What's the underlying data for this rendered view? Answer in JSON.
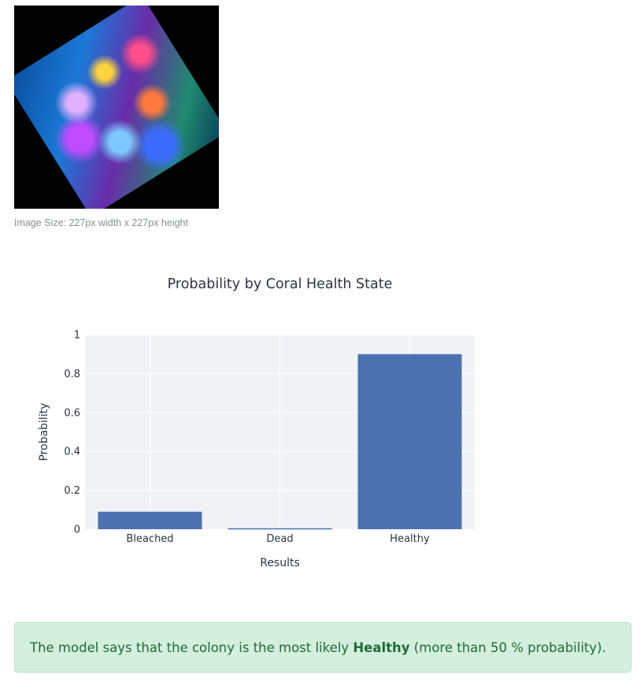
{
  "image": {
    "caption": "Image Size: 227px width x 227px height"
  },
  "chart_data": {
    "type": "bar",
    "title": "Probability by Coral Health State",
    "xlabel": "Results",
    "ylabel": "Probability",
    "categories": [
      "Bleached",
      "Dead",
      "Healthy"
    ],
    "values": [
      0.09,
      0.005,
      0.9
    ],
    "ylim": [
      0,
      1
    ],
    "yticks": [
      0,
      0.2,
      0.4,
      0.6,
      0.8,
      1
    ],
    "ytick_labels": [
      "0",
      "0.2",
      "0.4",
      "0.6",
      "0.8",
      "1"
    ],
    "grid": true,
    "bar_color": "#4c72b0",
    "plot_bg": "#f0f2f6"
  },
  "result": {
    "prefix": "The model says that the colony is the most likely ",
    "label": "Healthy",
    "suffix": " (more than 50 % probability)."
  },
  "colors": {
    "alert_bg": "#d4efdd",
    "alert_text": "#1e6b39"
  }
}
